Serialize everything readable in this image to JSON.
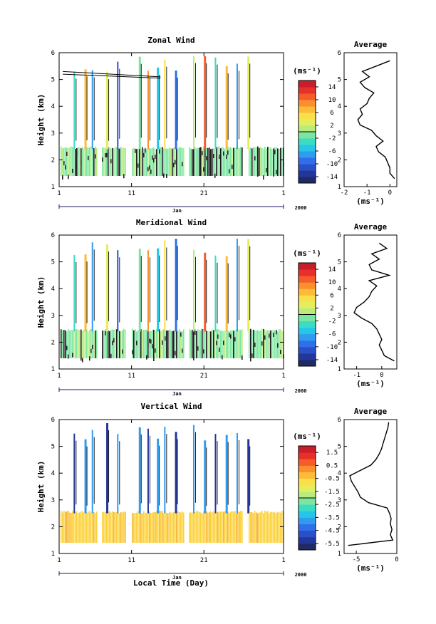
{
  "figure": {
    "xlabel": "Local Time (Day)",
    "month": "Jan",
    "year": "2000",
    "unit_label": "(ms⁻¹)",
    "avg_title": "Average",
    "ylabel": "Height (km)"
  },
  "chart_data": [
    {
      "type": "heatmap",
      "title": "Zonal Wind",
      "xlabel": "Local Time (Day)",
      "ylabel": "Height (km)",
      "xlim": [
        1,
        32
      ],
      "ylim": [
        1,
        6
      ],
      "x_ticks": [
        "1",
        "11",
        "21",
        "1"
      ],
      "y_ticks": [
        "1",
        "2",
        "3",
        "4",
        "5",
        "6"
      ],
      "colorbar": {
        "unit": "(ms⁻¹)",
        "range": [
          -16,
          16
        ],
        "tick_labels": [
          "14",
          "10",
          "6",
          "2",
          "-2",
          "-6",
          "-10",
          "-14"
        ]
      },
      "average_profile": {
        "title": "Average",
        "xlabel": "(ms⁻¹)",
        "xlim": [
          -2,
          0.3
        ],
        "x_ticks": [
          "-2",
          "-1",
          "0"
        ],
        "height": [
          1.3,
          1.5,
          1.7,
          1.9,
          2.1,
          2.3,
          2.5,
          2.7,
          2.9,
          3.1,
          3.3,
          3.5,
          3.7,
          3.9,
          4.1,
          4.3,
          4.5,
          4.7,
          4.9,
          5.1,
          5.3,
          5.5,
          5.7
        ],
        "value": [
          0.2,
          0.0,
          0.0,
          -0.1,
          -0.2,
          -0.5,
          -0.6,
          -0.3,
          -0.6,
          -0.8,
          -1.3,
          -1.4,
          -1.2,
          -1.3,
          -1.0,
          -0.9,
          -0.7,
          -1.1,
          -1.3,
          -0.9,
          -1.2,
          -0.6,
          0.0
        ]
      }
    },
    {
      "type": "heatmap",
      "title": "Meridional Wind",
      "xlabel": "Local Time (Day)",
      "ylabel": "Height (km)",
      "xlim": [
        1,
        32
      ],
      "ylim": [
        1,
        6
      ],
      "x_ticks": [
        "1",
        "11",
        "21",
        "1"
      ],
      "y_ticks": [
        "1",
        "2",
        "3",
        "4",
        "5",
        "6"
      ],
      "colorbar": {
        "unit": "(ms⁻¹)",
        "range": [
          -16,
          16
        ],
        "tick_labels": [
          "14",
          "10",
          "6",
          "2",
          "-2",
          "-6",
          "-10",
          "-14"
        ]
      },
      "average_profile": {
        "title": "Average",
        "xlabel": "(ms⁻¹)",
        "xlim": [
          -1.5,
          0.6
        ],
        "x_ticks": [
          "-1",
          "0"
        ],
        "height": [
          1.3,
          1.5,
          1.7,
          1.9,
          2.1,
          2.3,
          2.5,
          2.7,
          2.9,
          3.1,
          3.3,
          3.5,
          3.7,
          3.9,
          4.1,
          4.3,
          4.5,
          4.7,
          4.9,
          5.1,
          5.3,
          5.5,
          5.7
        ],
        "value": [
          0.5,
          0.1,
          0.0,
          -0.1,
          0.0,
          -0.1,
          -0.2,
          -0.4,
          -0.8,
          -1.1,
          -1.0,
          -0.7,
          -0.5,
          -0.4,
          -0.2,
          -0.5,
          0.3,
          -0.4,
          -0.5,
          -0.1,
          -0.4,
          0.2,
          -0.1
        ]
      }
    },
    {
      "type": "heatmap",
      "title": "Vertical Wind",
      "xlabel": "Local Time (Day)",
      "ylabel": "Height (km)",
      "xlim": [
        1,
        32
      ],
      "ylim": [
        1,
        6
      ],
      "x_ticks": [
        "1",
        "11",
        "21",
        "1"
      ],
      "y_ticks": [
        "1",
        "2",
        "3",
        "4",
        "5",
        "6"
      ],
      "colorbar": {
        "unit": "(ms⁻¹)",
        "range": [
          -6,
          2
        ],
        "tick_labels": [
          "1.5",
          "0.5",
          "-0.5",
          "-1.5",
          "-2.5",
          "-3.5",
          "-4.5",
          "-5.5"
        ]
      },
      "average_profile": {
        "title": "Average",
        "xlabel": "(ms⁻¹)",
        "xlim": [
          -6.5,
          0
        ],
        "x_ticks": [
          "-5",
          "0"
        ],
        "height": [
          1.3,
          1.5,
          1.7,
          1.9,
          2.1,
          2.3,
          2.5,
          2.7,
          2.9,
          3.1,
          3.3,
          3.5,
          3.7,
          3.9,
          4.1,
          4.3,
          4.5,
          4.7,
          4.9,
          5.1,
          5.3,
          5.5,
          5.7,
          5.9
        ],
        "value": [
          -6.0,
          -0.5,
          -0.8,
          -0.6,
          -0.8,
          -0.7,
          -0.9,
          -1.2,
          -3.5,
          -4.5,
          -4.8,
          -5.2,
          -5.6,
          -5.8,
          -4.5,
          -3.2,
          -2.6,
          -2.2,
          -1.9,
          -1.7,
          -1.5,
          -1.3,
          -1.1,
          -1.0
        ]
      }
    }
  ]
}
